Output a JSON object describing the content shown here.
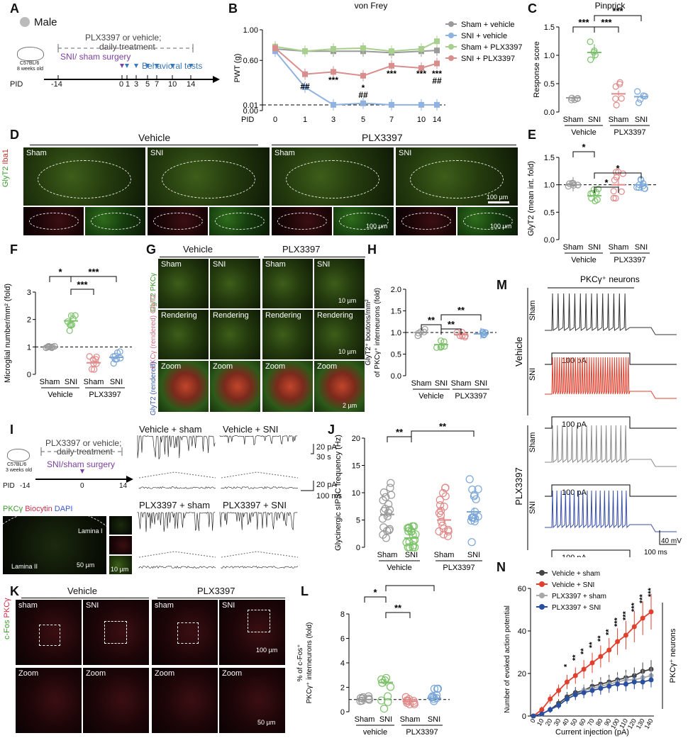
{
  "panels": {
    "A": "A",
    "B": "B",
    "C": "C",
    "D": "D",
    "E": "E",
    "F": "F",
    "G": "G",
    "H": "H",
    "I": "I",
    "J": "J",
    "K": "K",
    "L": "L",
    "M": "M",
    "N": "N"
  },
  "a": {
    "legend": "Male",
    "mouse": "C57BL/6",
    "age": "8 weeks old",
    "treat": "PLX3397 or vehicle;",
    "treat2": "daily treatment",
    "surgery": "SNI/ sham surgery",
    "tests": "Behavioral tests",
    "pid": "PID",
    "ticks": [
      "-14",
      "0",
      "1",
      "3",
      "5",
      "7",
      "10",
      "14"
    ]
  },
  "i": {
    "mouse": "C57BL/6",
    "age": "3 weeks old",
    "treat": "PLX3397 or vehicle;",
    "treat2": "daily treatment",
    "surgery": "SNI/sham surgery",
    "pid": "PID",
    "ticks": [
      "-14",
      "0",
      "14"
    ],
    "stain": "PKCγ Biocytin DAPI",
    "lamina1": "Lamina I",
    "lamina2": "Lamina II",
    "sb1": "50 µm",
    "sb2": "10 µm",
    "traces": [
      "Vehicle + sham",
      "Vehicle + SNI",
      "PLX3397 + sham",
      "PLX3397 + SNI"
    ],
    "sbar1": "20 pA",
    "sbar1t": "30 s",
    "sbar2": "20 pA",
    "sbar2t": "100 ms"
  },
  "d": {
    "vehicle": "Vehicle",
    "plx": "PLX3397",
    "sham": "Sham",
    "sni": "SNI",
    "ylabel1": "GlyT2",
    "ylabel2": "Iba1",
    "sb": "100 µm"
  },
  "g": {
    "vehicle": "Vehicle",
    "plx": "PLX3397",
    "sham": "Sham",
    "sni": "SNI",
    "rendering": "Rendering",
    "zoom": "Zoom",
    "y1": "GlyT2 PKCγ",
    "y2": "PKCγ (rendered) GlyT2",
    "y3": "GlyT2 (rendered)",
    "sb1": "10 µm",
    "sb2": "2 µm"
  },
  "k": {
    "vehicle": "Vehicle",
    "plx": "PLX3397",
    "sham": "sham",
    "sni": "SNI",
    "zoom": "Zoom",
    "ylab": "c-Fos PKCγ",
    "sb1": "100 µm",
    "sb2": "50 µm"
  },
  "m": {
    "title": "PKCγ⁺ neurons",
    "vehicle": "Vehicle",
    "plx": "PLX3397",
    "sham": "Sham",
    "sni": "SNI",
    "pa": "100 pA",
    "mv": "40 mV",
    "ms": "100 ms"
  },
  "group": {
    "sham": "Sham",
    "sni": "SNI",
    "vehicle": "Vehicle",
    "vehicle_lc": "vehicle",
    "plx": "PLX3397"
  },
  "chart_data": [
    {
      "id": "B",
      "type": "line",
      "title": "von Frey",
      "ylabel": "PWT (g)",
      "xlabel": "PID",
      "x": [
        0,
        1,
        3,
        5,
        7,
        10,
        14
      ],
      "ylim": [
        0,
        1.0
      ],
      "ytick_labels": [
        "0.00",
        "0.01",
        "0.60",
        "1.00"
      ],
      "series": [
        {
          "name": "Sham + vehicle",
          "color": "#9a9a9a",
          "values": [
            0.75,
            0.72,
            0.72,
            0.72,
            0.7,
            0.72,
            0.73
          ]
        },
        {
          "name": "SNI + vehicle",
          "color": "#8fb2e0",
          "values": [
            0.72,
            0.25,
            0.02,
            0.04,
            0.02,
            0.02,
            0.02
          ]
        },
        {
          "name": "Sham + PLX3397",
          "color": "#a8cf8e",
          "values": [
            0.78,
            0.72,
            0.75,
            0.76,
            0.72,
            0.75,
            0.85
          ]
        },
        {
          "name": "SNI + PLX3397",
          "color": "#d98e8e",
          "values": [
            0.76,
            0.42,
            0.45,
            0.4,
            0.53,
            0.5,
            0.56
          ]
        }
      ],
      "annotations": [
        "##",
        "***",
        "*",
        "##",
        "***",
        "***",
        "***",
        "##"
      ]
    },
    {
      "id": "C",
      "type": "scatter",
      "title": "Pinprick",
      "ylabel": "Response score",
      "ylim": [
        0,
        1.5
      ],
      "ytick_labels": [
        "0.0",
        "0.5",
        "1.0",
        "1.5"
      ],
      "categories": [
        "Sham",
        "SNI",
        "Sham",
        "SNI"
      ],
      "groups": [
        "Vehicle",
        "PLX3397"
      ],
      "means": [
        0.25,
        1.05,
        0.32,
        0.27
      ],
      "sig": [
        "***",
        "***",
        "***"
      ]
    },
    {
      "id": "E",
      "type": "scatter",
      "ylabel": "GlyT2 (mean int. fold)",
      "ylim": [
        0,
        1.5
      ],
      "ytick_labels": [
        "0.0",
        "0.5",
        "1.0",
        "1.5"
      ],
      "categories": [
        "Sham",
        "SNI",
        "Sham",
        "SNI"
      ],
      "groups": [
        "Vehicle",
        "PLX3397"
      ],
      "means": [
        1.0,
        0.8,
        1.0,
        1.0
      ],
      "sig": [
        "*",
        "*",
        "*"
      ]
    },
    {
      "id": "F",
      "type": "scatter",
      "ylabel": "Microglial number/mm² (fold)",
      "ylim": [
        0,
        3
      ],
      "ytick_labels": [
        "0",
        "1",
        "2",
        "3"
      ],
      "categories": [
        "Sham",
        "SNI",
        "Sham",
        "SNI"
      ],
      "groups": [
        "Vehicle",
        "PLX3397"
      ],
      "means": [
        1.0,
        1.95,
        0.42,
        0.62
      ],
      "sig": [
        "*",
        "***",
        "***"
      ]
    },
    {
      "id": "H",
      "type": "scatter",
      "ylabel": "GlyT2⁺ boutons/mm² of PKCγ⁺ interneurons (fold)",
      "ylim": [
        0,
        2.0
      ],
      "ytick_labels": [
        "0.0",
        "0.5",
        "1.0",
        "1.5",
        "2.0"
      ],
      "categories": [
        "Sham",
        "SNI",
        "Sham",
        "SNI"
      ],
      "groups": [
        "Vehicle",
        "PLX3397"
      ],
      "means": [
        1.0,
        0.72,
        0.95,
        0.97
      ],
      "sig": [
        "**",
        "**",
        "**"
      ]
    },
    {
      "id": "J",
      "type": "scatter",
      "ylabel": "Glycinergic sIPSC frequency (Hz)",
      "ylim": [
        0,
        20
      ],
      "ytick_labels": [
        "0",
        "5",
        "10",
        "15",
        "20"
      ],
      "categories": [
        "Sham",
        "SNI",
        "Sham",
        "SNI"
      ],
      "groups": [
        "Vehicle",
        "PLX3397"
      ],
      "means": [
        6.0,
        1.7,
        5.0,
        6.5
      ],
      "sig": [
        "**",
        "**"
      ]
    },
    {
      "id": "L",
      "type": "scatter",
      "ylabel": "% of c-Fos⁺ PKCγ⁺ interneurons (fold)",
      "ylim": [
        0,
        8
      ],
      "ytick_labels": [
        "0",
        "2",
        "4",
        "6",
        "8"
      ],
      "categories": [
        "Sham",
        "SNI",
        "Sham",
        "SNI"
      ],
      "groups": [
        "vehicle",
        "PLX3397"
      ],
      "means": [
        1.0,
        2.4,
        0.85,
        1.1
      ],
      "sig": [
        "*",
        "**",
        "*"
      ]
    },
    {
      "id": "N",
      "type": "line",
      "ylabel": "Number of evoked action potential",
      "xlabel": "Current injection (pA)",
      "side_label": "PKCγ⁺ neurons",
      "ylim": [
        0,
        60
      ],
      "ytick_labels": [
        "0",
        "20",
        "40",
        "60"
      ],
      "x": [
        0,
        10,
        20,
        30,
        40,
        50,
        60,
        70,
        80,
        90,
        100,
        110,
        120,
        130,
        140
      ],
      "series": [
        {
          "name": "Vehicle + sham",
          "color": "#444444",
          "values": [
            0,
            1,
            3,
            6,
            9,
            11,
            12,
            14,
            15,
            16,
            17,
            18,
            19,
            21,
            22
          ]
        },
        {
          "name": "Vehicle + SNI",
          "color": "#e0402e",
          "values": [
            0,
            3,
            8,
            12,
            16,
            19,
            22,
            25,
            28,
            31,
            35,
            38,
            42,
            46,
            49
          ]
        },
        {
          "name": "PLX3397 + sham",
          "color": "#a8a8a8",
          "values": [
            0,
            1,
            3,
            5,
            8,
            10,
            12,
            13,
            14,
            15,
            16,
            17,
            17,
            18,
            19
          ]
        },
        {
          "name": "PLX3397 + SNI",
          "color": "#2a4fa0",
          "values": [
            0,
            1,
            3,
            5,
            8,
            10,
            11,
            12,
            13,
            14,
            15,
            15,
            16,
            16,
            17
          ]
        }
      ],
      "stars": [
        "*",
        "**",
        "**",
        "**",
        "**",
        "**",
        "***",
        "***",
        "***",
        "***",
        "***"
      ]
    }
  ]
}
